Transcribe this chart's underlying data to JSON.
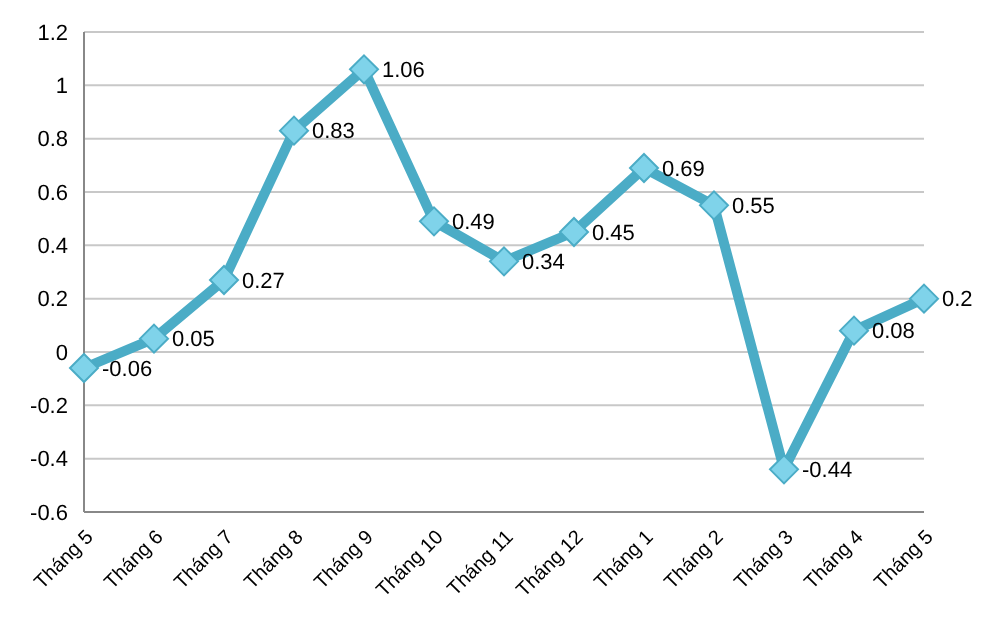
{
  "chart_data": {
    "type": "line",
    "categories": [
      "Tháng 5",
      "Tháng 6",
      "Tháng 7",
      "Tháng 8",
      "Tháng 9",
      "Tháng 10",
      "Tháng 11",
      "Tháng 12",
      "Tháng 1",
      "Tháng 2",
      "Tháng 3",
      "Tháng 4",
      "Tháng 5"
    ],
    "series": [
      {
        "color": "#4bacc6",
        "values": [
          -0.06,
          0.05,
          0.27,
          0.83,
          1.06,
          0.49,
          0.34,
          0.45,
          0.69,
          0.55,
          -0.44,
          0.08,
          0.2
        ]
      }
    ],
    "ylim": [
      -0.6,
      1.2
    ],
    "yticks": [
      -0.6,
      -0.4,
      -0.2,
      0,
      0.2,
      0.4,
      0.6,
      0.8,
      1,
      1.2
    ],
    "grid": "y",
    "marker": "diamond",
    "line_style": "solid",
    "data_labels": true
  }
}
